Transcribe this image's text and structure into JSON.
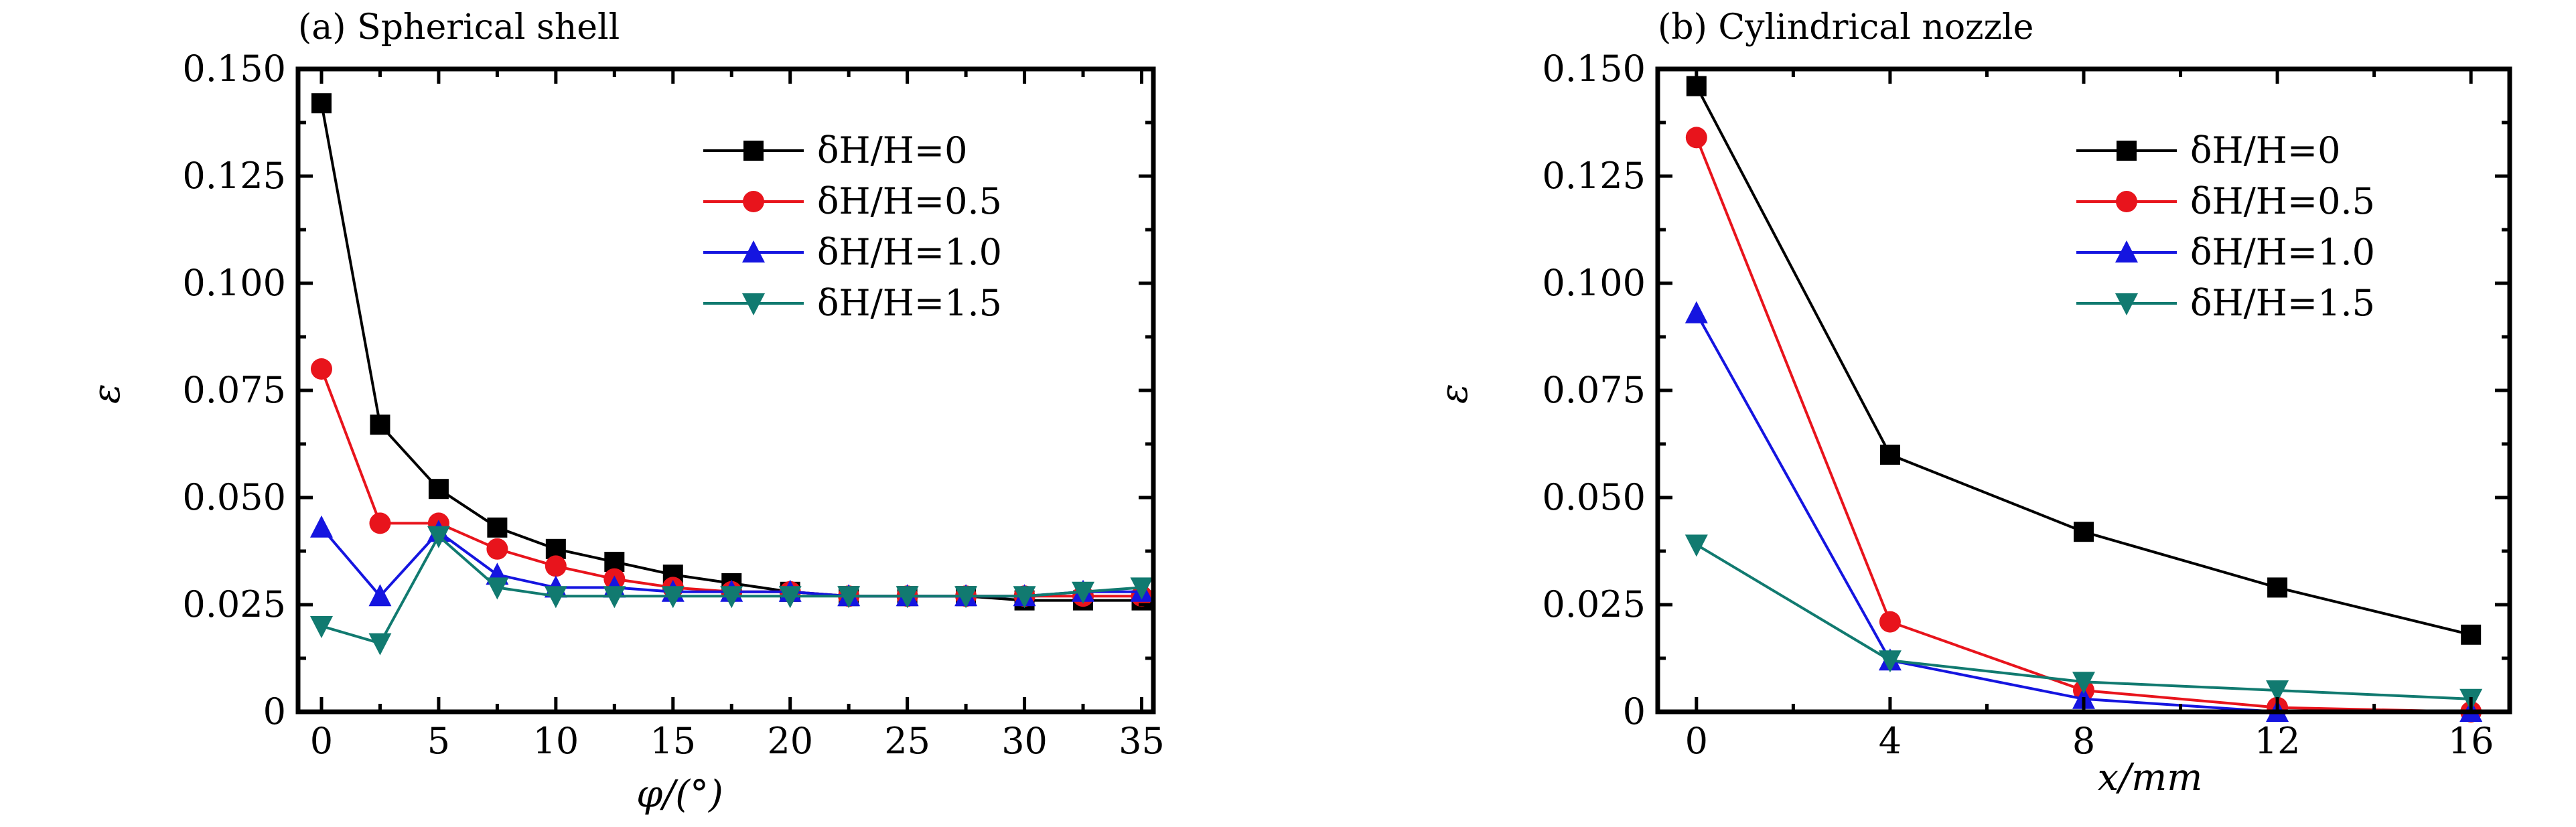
{
  "chart_data": [
    {
      "type": "line",
      "title": "(a) Spherical shell",
      "xlabel": "φ/(°)",
      "ylabel": "ε",
      "xlim": [
        -1,
        35.5
      ],
      "ylim": [
        0,
        0.15
      ],
      "xticks": [
        0,
        5,
        10,
        15,
        20,
        25,
        30,
        35
      ],
      "xtick_labels": [
        "0",
        "5",
        "10",
        "15",
        "20",
        "25",
        "30",
        "35"
      ],
      "yticks": [
        0,
        0.025,
        0.05,
        0.075,
        0.1,
        0.125,
        0.15
      ],
      "ytick_labels": [
        "0",
        "0.025",
        "0.050",
        "0.075",
        "0.100",
        "0.125",
        "0.150"
      ],
      "legend_position": "top-right",
      "series": [
        {
          "name": "δH/H=0",
          "color": "#000000",
          "marker": "square",
          "x": [
            0,
            2.5,
            5,
            7.5,
            10,
            12.5,
            15,
            17.5,
            20,
            22.5,
            25,
            27.5,
            30,
            32.5,
            35
          ],
          "y": [
            0.142,
            0.067,
            0.052,
            0.043,
            0.038,
            0.035,
            0.032,
            0.03,
            0.028,
            0.027,
            0.027,
            0.027,
            0.026,
            0.026,
            0.026
          ]
        },
        {
          "name": "δH/H=0.5",
          "color": "#e8141c",
          "marker": "circle",
          "x": [
            0,
            2.5,
            5,
            7.5,
            10,
            12.5,
            15,
            17.5,
            20,
            22.5,
            25,
            27.5,
            30,
            32.5,
            35
          ],
          "y": [
            0.08,
            0.044,
            0.044,
            0.038,
            0.034,
            0.031,
            0.029,
            0.028,
            0.028,
            0.027,
            0.027,
            0.027,
            0.027,
            0.027,
            0.027
          ]
        },
        {
          "name": "δH/H=1.0",
          "color": "#1515e0",
          "marker": "triangle-up",
          "x": [
            0,
            2.5,
            5,
            7.5,
            10,
            12.5,
            15,
            17.5,
            20,
            22.5,
            25,
            27.5,
            30,
            32.5,
            35
          ],
          "y": [
            0.043,
            0.027,
            0.042,
            0.032,
            0.029,
            0.029,
            0.028,
            0.028,
            0.028,
            0.027,
            0.027,
            0.027,
            0.027,
            0.028,
            0.028
          ]
        },
        {
          "name": "δH/H=1.5",
          "color": "#117a70",
          "marker": "triangle-down",
          "x": [
            0,
            2.5,
            5,
            7.5,
            10,
            12.5,
            15,
            17.5,
            20,
            22.5,
            25,
            27.5,
            30,
            32.5,
            35
          ],
          "y": [
            0.02,
            0.016,
            0.041,
            0.029,
            0.027,
            0.027,
            0.027,
            0.027,
            0.027,
            0.027,
            0.027,
            0.027,
            0.027,
            0.028,
            0.029
          ]
        }
      ]
    },
    {
      "type": "line",
      "title": "(b) Cylindrical nozzle",
      "xlabel": "x/mm",
      "ylabel": "ε",
      "xlim": [
        -0.8,
        16.8
      ],
      "ylim": [
        0,
        0.15
      ],
      "xticks": [
        0,
        4,
        8,
        12,
        16
      ],
      "xtick_labels": [
        "0",
        "4",
        "8",
        "12",
        "16"
      ],
      "yticks": [
        0,
        0.025,
        0.05,
        0.075,
        0.1,
        0.125,
        0.15
      ],
      "ytick_labels": [
        "0",
        "0.025",
        "0.050",
        "0.075",
        "0.100",
        "0.125",
        "0.150"
      ],
      "legend_position": "top-right",
      "series": [
        {
          "name": "δH/H=0",
          "color": "#000000",
          "marker": "square",
          "x": [
            0,
            4,
            8,
            12,
            16
          ],
          "y": [
            0.146,
            0.06,
            0.042,
            0.029,
            0.018
          ]
        },
        {
          "name": "δH/H=0.5",
          "color": "#e8141c",
          "marker": "circle",
          "x": [
            0,
            4,
            8,
            12,
            16
          ],
          "y": [
            0.134,
            0.021,
            0.005,
            0.001,
            0.0
          ]
        },
        {
          "name": "δH/H=1.0",
          "color": "#1515e0",
          "marker": "triangle-up",
          "x": [
            0,
            4,
            8,
            12,
            16
          ],
          "y": [
            0.093,
            0.012,
            0.003,
            0.0,
            0.0
          ]
        },
        {
          "name": "δH/H=1.5",
          "color": "#117a70",
          "marker": "triangle-down",
          "x": [
            0,
            4,
            8,
            12,
            16
          ],
          "y": [
            0.039,
            0.012,
            0.007,
            0.005,
            0.003
          ]
        }
      ]
    }
  ]
}
